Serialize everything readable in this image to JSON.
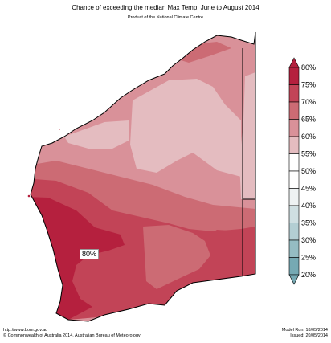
{
  "header": {
    "title": "Chance of exceeding the median Max Temp: June to August 2014",
    "subtitle": "Product of the National Climate Centre"
  },
  "map": {
    "label": "80%",
    "zone_colors": {
      "z80": "#b5203e",
      "z75": "#c24457",
      "z70": "#cc6b74",
      "z65": "#d99199",
      "z60": "#e4bcc0",
      "z55": "#ffffff",
      "z50": "#ffffff"
    }
  },
  "legend": {
    "labels": [
      "80%",
      "75%",
      "70%",
      "65%",
      "60%",
      "55%",
      "50%",
      "45%",
      "40%",
      "35%",
      "30%",
      "25%",
      "20%"
    ],
    "colors": [
      "#b5203e",
      "#c24457",
      "#cc6b74",
      "#d99199",
      "#e4bcc0",
      "#ffffff",
      "#ffffff",
      "#eef2f3",
      "#cfdfe2",
      "#b3ced3",
      "#95bcc3",
      "#76a9b3"
    ]
  },
  "footer": {
    "url": "http://www.bom.gov.au",
    "copyright": "©  Commonwealth of Australia 2014, Australian Bureau of Meteorology",
    "model_run": "Model Run: 18/05/2014",
    "issued": "Issued: 20/05/2014"
  }
}
